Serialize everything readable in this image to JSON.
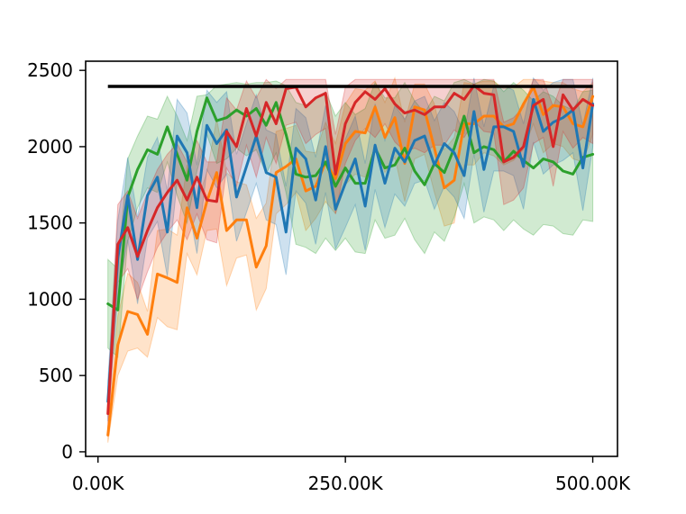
{
  "chart_data": {
    "type": "line",
    "title": "",
    "xlabel": "",
    "ylabel": "",
    "xlim": [
      -12500,
      525000
    ],
    "ylim": [
      -30,
      2560
    ],
    "x_ticks": [
      0,
      250000,
      500000
    ],
    "x_tick_labels": [
      "0.00K",
      "250.00K",
      "500.00K"
    ],
    "y_ticks": [
      0,
      500,
      1000,
      1500,
      2000,
      2500
    ],
    "y_tick_labels": [
      "0",
      "500",
      "1000",
      "1500",
      "2000",
      "2500"
    ],
    "grid": false,
    "legend": "none",
    "x": [
      10000,
      20000,
      30000,
      40000,
      50000,
      60000,
      70000,
      80000,
      90000,
      100000,
      110000,
      120000,
      130000,
      140000,
      150000,
      160000,
      170000,
      180000,
      190000,
      200000,
      210000,
      220000,
      230000,
      240000,
      250000,
      260000,
      270000,
      280000,
      290000,
      300000,
      310000,
      320000,
      330000,
      340000,
      350000,
      360000,
      370000,
      380000,
      390000,
      400000,
      410000,
      420000,
      430000,
      440000,
      450000,
      460000,
      470000,
      480000,
      490000,
      500000
    ],
    "reference_line": {
      "value": 2395,
      "x_range": [
        10000,
        500000
      ],
      "color": "#000000"
    },
    "series": [
      {
        "color": "#ff7f0e",
        "values": [
          110,
          700,
          920,
          900,
          770,
          1165,
          1140,
          1110,
          1600,
          1400,
          1640,
          1830,
          1450,
          1520,
          1520,
          1210,
          1350,
          1830,
          1870,
          1920,
          1710,
          1740,
          1900,
          1790,
          2020,
          2100,
          2090,
          2260,
          2060,
          2190,
          1890,
          2260,
          2240,
          1990,
          1730,
          1780,
          2150,
          2150,
          2200,
          2200,
          2130,
          2150,
          2280,
          2390,
          2210,
          2270,
          2260,
          2150,
          2130,
          2330
        ],
        "lower": [
          60,
          500,
          660,
          680,
          620,
          880,
          820,
          800,
          1300,
          1160,
          1450,
          1460,
          1090,
          1270,
          1290,
          930,
          1070,
          1560,
          1620,
          1700,
          1450,
          1530,
          1640,
          1560,
          1750,
          1820,
          1800,
          2000,
          1830,
          1930,
          1640,
          1920,
          1950,
          1700,
          1480,
          1500,
          1880,
          1880,
          1960,
          1940,
          1880,
          1910,
          1980,
          2150,
          1960,
          2020,
          2000,
          1920,
          1900,
          2080
        ],
        "upper": [
          160,
          890,
          1170,
          1110,
          920,
          1450,
          1460,
          1420,
          1880,
          1640,
          1830,
          2180,
          1830,
          1770,
          1750,
          1530,
          1630,
          2100,
          2120,
          2140,
          1970,
          1960,
          2160,
          2020,
          2280,
          2380,
          2370,
          2430,
          2290,
          2450,
          2160,
          2410,
          2410,
          2280,
          1980,
          2060,
          2420,
          2410,
          2430,
          2430,
          2380,
          2390,
          2440,
          2440,
          2430,
          2420,
          2420,
          2380,
          2360,
          2420
        ]
      },
      {
        "color": "#2ca02c",
        "values": [
          970,
          930,
          1670,
          1850,
          1980,
          1950,
          2130,
          1950,
          1780,
          2100,
          2320,
          2170,
          2190,
          2240,
          2200,
          2250,
          2140,
          2290,
          2080,
          1820,
          1800,
          1810,
          1900,
          1740,
          1860,
          1760,
          1760,
          1990,
          1860,
          1880,
          1990,
          1840,
          1750,
          1890,
          1830,
          1990,
          2200,
          1960,
          2000,
          1980,
          1900,
          1970,
          1910,
          1860,
          1920,
          1900,
          1840,
          1820,
          1930,
          1950
        ],
        "lower": [
          680,
          620,
          1380,
          1600,
          1730,
          1700,
          1900,
          1680,
          1500,
          1840,
          2080,
          1890,
          1920,
          1990,
          1940,
          1980,
          1820,
          1960,
          1700,
          1360,
          1340,
          1300,
          1400,
          1320,
          1400,
          1310,
          1300,
          1520,
          1400,
          1420,
          1530,
          1390,
          1300,
          1440,
          1380,
          1540,
          1760,
          1500,
          1540,
          1520,
          1450,
          1520,
          1460,
          1420,
          1490,
          1480,
          1430,
          1420,
          1520,
          1510
        ],
        "upper": [
          1260,
          1200,
          1920,
          2070,
          2200,
          2180,
          2330,
          2200,
          2040,
          2330,
          2340,
          2400,
          2410,
          2420,
          2410,
          2420,
          2420,
          2430,
          2400,
          2290,
          2270,
          2310,
          2360,
          2200,
          2290,
          2210,
          2250,
          2420,
          2320,
          2320,
          2420,
          2300,
          2220,
          2330,
          2300,
          2420,
          2440,
          2410,
          2440,
          2430,
          2360,
          2420,
          2370,
          2300,
          2360,
          2330,
          2270,
          2240,
          2360,
          2370
        ]
      },
      {
        "color": "#1f77b4",
        "values": [
          330,
          1270,
          1680,
          1260,
          1680,
          1800,
          1440,
          2070,
          1960,
          1600,
          2140,
          2020,
          2110,
          1670,
          1870,
          2070,
          1830,
          1800,
          1440,
          1990,
          1920,
          1650,
          2000,
          1590,
          1760,
          1920,
          1610,
          2010,
          1760,
          1990,
          1900,
          2040,
          2070,
          1880,
          2020,
          1960,
          1810,
          2230,
          1850,
          2130,
          2130,
          2100,
          1870,
          2310,
          2100,
          2160,
          2190,
          2240,
          1860,
          2280
        ],
        "lower": [
          200,
          1020,
          1390,
          970,
          1400,
          1510,
          1150,
          1770,
          1660,
          1300,
          1850,
          1730,
          1820,
          1380,
          1570,
          1760,
          1520,
          1490,
          1160,
          1710,
          1630,
          1360,
          1700,
          1330,
          1470,
          1620,
          1320,
          1720,
          1470,
          1690,
          1610,
          1760,
          1780,
          1590,
          1740,
          1670,
          1530,
          1950,
          1570,
          1840,
          1840,
          1810,
          1590,
          2030,
          1820,
          1880,
          1910,
          1960,
          1580,
          2000
        ],
        "upper": [
          470,
          1520,
          1930,
          1540,
          1930,
          2060,
          1710,
          2310,
          2220,
          1880,
          2370,
          2290,
          2360,
          1950,
          2150,
          2340,
          2110,
          2080,
          1740,
          2250,
          2190,
          1930,
          2270,
          1870,
          2050,
          2200,
          1890,
          2280,
          2040,
          2270,
          2180,
          2300,
          2330,
          2170,
          2290,
          2230,
          2090,
          2450,
          2130,
          2400,
          2400,
          2370,
          2150,
          2450,
          2370,
          2420,
          2440,
          2440,
          2140,
          2450
        ]
      },
      {
        "color": "#d62728",
        "values": [
          250,
          1360,
          1470,
          1280,
          1450,
          1600,
          1700,
          1780,
          1650,
          1800,
          1650,
          1640,
          2100,
          2000,
          2250,
          2070,
          2290,
          2150,
          2380,
          2390,
          2260,
          2320,
          2350,
          1820,
          2150,
          2290,
          2360,
          2310,
          2380,
          2280,
          2220,
          2240,
          2210,
          2260,
          2260,
          2350,
          2310,
          2400,
          2350,
          2340,
          1900,
          1930,
          2000,
          2270,
          2310,
          2000,
          2340,
          2240,
          2310,
          2270
        ],
        "lower": [
          140,
          1110,
          1200,
          1000,
          1180,
          1340,
          1440,
          1520,
          1390,
          1560,
          1390,
          1370,
          1860,
          1740,
          2010,
          1800,
          2060,
          1890,
          2140,
          2160,
          2020,
          2080,
          2120,
          1560,
          1890,
          2040,
          2120,
          2060,
          2150,
          2030,
          1970,
          1990,
          1960,
          2010,
          2010,
          2110,
          2060,
          2170,
          2100,
          2090,
          1620,
          1650,
          1730,
          2020,
          2060,
          1740,
          2100,
          1990,
          2060,
          2020
        ],
        "upper": [
          380,
          1620,
          1710,
          1530,
          1700,
          1850,
          1950,
          2020,
          1900,
          2040,
          1900,
          1900,
          2320,
          2240,
          2430,
          2320,
          2440,
          2380,
          2440,
          2440,
          2440,
          2440,
          2440,
          2080,
          2390,
          2440,
          2440,
          2440,
          2440,
          2440,
          2440,
          2440,
          2440,
          2440,
          2440,
          2440,
          2440,
          2440,
          2440,
          2440,
          2160,
          2190,
          2260,
          2440,
          2440,
          2260,
          2440,
          2440,
          2440,
          2440
        ]
      }
    ]
  }
}
